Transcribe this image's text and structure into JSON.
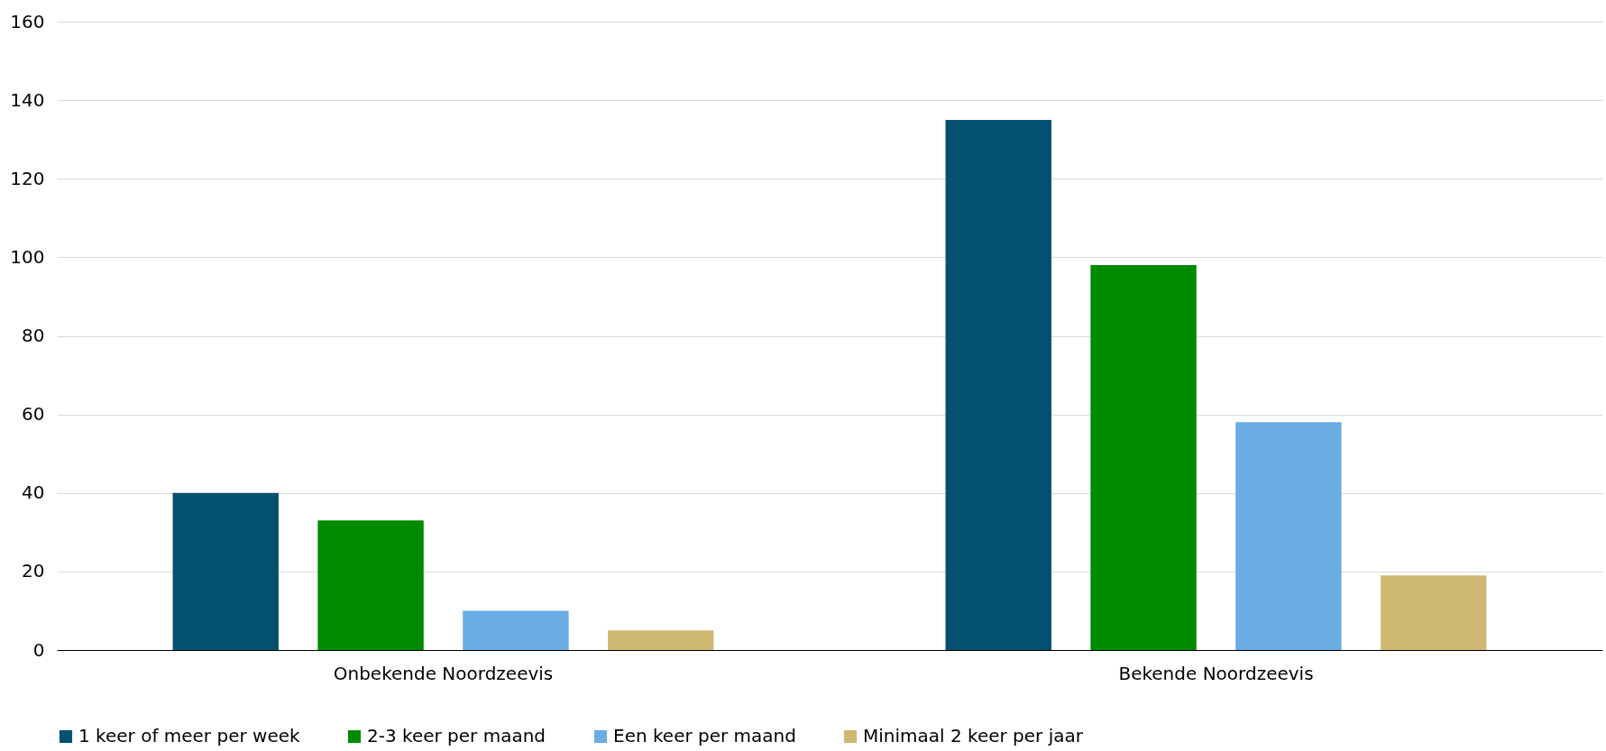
{
  "chart_data": {
    "type": "bar",
    "categories": [
      "Onbekende Noordzeevis",
      "Bekende Noordzeevis"
    ],
    "series": [
      {
        "name": "1 keer of meer per week",
        "color": "#03506f",
        "values": [
          40,
          135
        ]
      },
      {
        "name": "2-3 keer per maand",
        "color": "#008a00",
        "values": [
          33,
          98
        ]
      },
      {
        "name": "Een keer per maand",
        "color": "#6aade4",
        "values": [
          10,
          58
        ]
      },
      {
        "name": "Minimaal 2 keer per jaar",
        "color": "#cfb872",
        "values": [
          5,
          19
        ]
      }
    ],
    "ylim": [
      0,
      160
    ],
    "yticks": [
      0,
      20,
      40,
      60,
      80,
      100,
      120,
      140,
      160
    ],
    "grid": "y",
    "legend": "bottom"
  }
}
